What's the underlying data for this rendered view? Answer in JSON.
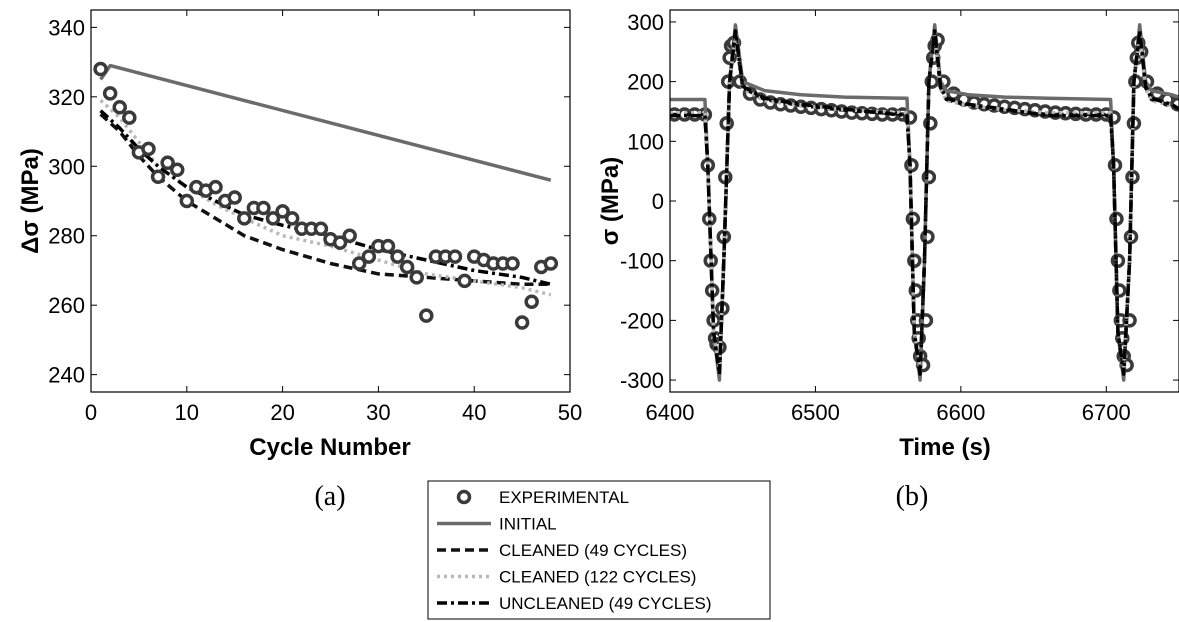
{
  "colors": {
    "experimental": "#3a3a3a",
    "initial": "#6b6b6b",
    "cleaned49": "#111111",
    "cleaned122": "#b8b8b8",
    "uncleaned49": "#000000"
  },
  "legend": {
    "placement": "bottom-center",
    "entries": [
      {
        "label": "EXPERIMENTAL",
        "style": "circle"
      },
      {
        "label": "INITIAL",
        "style": "solid"
      },
      {
        "label": "CLEANED (49 CYCLES)",
        "style": "dashed"
      },
      {
        "label": "CLEANED (122 CYCLES)",
        "style": "dotted"
      },
      {
        "label": "UNCLEANED (49 CYCLES)",
        "style": "dashdot"
      }
    ]
  },
  "chart_data": [
    {
      "type": "line",
      "panel_label": "(a)",
      "xlabel": "Cycle Number",
      "ylabel": "Δσ (MPa)",
      "xlim": [
        0,
        50
      ],
      "ylim": [
        235,
        345
      ],
      "xticks": [
        "0",
        "10",
        "20",
        "30",
        "40",
        "50"
      ],
      "yticks": [
        "240",
        "260",
        "280",
        "300",
        "320",
        "340"
      ],
      "grid": false,
      "series": [
        {
          "name": "EXPERIMENTAL",
          "style": "circle",
          "x": [
            1,
            2,
            3,
            4,
            5,
            6,
            7,
            8,
            9,
            10,
            11,
            12,
            13,
            14,
            15,
            16,
            17,
            18,
            19,
            20,
            21,
            22,
            23,
            24,
            25,
            26,
            27,
            28,
            29,
            30,
            31,
            32,
            33,
            34,
            35,
            36,
            37,
            38,
            39,
            40,
            41,
            42,
            43,
            44,
            45,
            46,
            47,
            48
          ],
          "y": [
            328,
            321,
            317,
            314,
            304,
            305,
            297,
            301,
            299,
            290,
            294,
            293,
            294,
            290,
            291,
            285,
            288,
            288,
            285,
            287,
            285,
            282,
            282,
            282,
            279,
            278,
            280,
            272,
            274,
            277,
            277,
            274,
            271,
            268,
            257,
            274,
            274,
            274,
            267,
            274,
            273,
            272,
            272,
            272,
            255,
            261,
            271,
            272
          ]
        },
        {
          "name": "INITIAL",
          "style": "solid",
          "x": [
            1,
            2,
            48
          ],
          "y": [
            325,
            329,
            296
          ]
        },
        {
          "name": "CLEANED (49 CYCLES)",
          "style": "dashed",
          "x": [
            1,
            3,
            5,
            7,
            10,
            13,
            16,
            20,
            25,
            30,
            35,
            40,
            45,
            48
          ],
          "y": [
            315,
            310,
            303,
            297,
            290,
            285,
            280,
            276,
            272,
            269,
            268,
            267,
            266,
            266
          ]
        },
        {
          "name": "CLEANED (122 CYCLES)",
          "style": "dotted",
          "x": [
            1,
            3,
            5,
            7,
            10,
            13,
            16,
            20,
            25,
            30,
            35,
            40,
            45,
            48
          ],
          "y": [
            319,
            314,
            307,
            300,
            294,
            289,
            285,
            280,
            277,
            273,
            269,
            267,
            265,
            263
          ]
        },
        {
          "name": "UNCLEANED (49 CYCLES)",
          "style": "dashdot",
          "x": [
            1,
            3,
            5,
            7,
            10,
            13,
            16,
            20,
            25,
            30,
            35,
            40,
            45,
            48
          ],
          "y": [
            316,
            311,
            305,
            300,
            294,
            290,
            286,
            283,
            280,
            276,
            273,
            270,
            268,
            266
          ]
        }
      ]
    },
    {
      "type": "line",
      "panel_label": "(b)",
      "xlabel": "Time (s)",
      "ylabel": "σ (MPa)",
      "xlim": [
        6400,
        6750
      ],
      "ylim": [
        -320,
        320
      ],
      "xticks": [
        "6400",
        "6500",
        "6600",
        "6700"
      ],
      "yticks": [
        "-300",
        "-200",
        "-100",
        "0",
        "100",
        "200",
        "300"
      ],
      "grid": false,
      "series": [
        {
          "name": "EXPERIMENTAL",
          "style": "circle",
          "x": [
            6403,
            6410,
            6417,
            6424,
            6426,
            6427,
            6428,
            6429,
            6430,
            6431,
            6432,
            6434,
            6436,
            6437,
            6438,
            6439,
            6440,
            6441,
            6442,
            6444,
            6448,
            6455,
            6462,
            6469,
            6476,
            6483,
            6490,
            6497,
            6504,
            6511,
            6518,
            6525,
            6532,
            6539,
            6546,
            6553,
            6560,
            6565,
            6566,
            6567,
            6568,
            6569,
            6570,
            6571,
            6572,
            6574,
            6576,
            6577,
            6578,
            6579,
            6580,
            6581,
            6582,
            6584,
            6588,
            6595,
            6602,
            6609,
            6616,
            6623,
            6630,
            6637,
            6644,
            6651,
            6658,
            6665,
            6672,
            6679,
            6686,
            6693,
            6700,
            6705,
            6706,
            6707,
            6708,
            6709,
            6710,
            6711,
            6712,
            6714,
            6716,
            6717,
            6718,
            6719,
            6720,
            6721,
            6722,
            6724,
            6728,
            6735,
            6742,
            6749
          ],
          "y": [
            145,
            145,
            145,
            145,
            60,
            -30,
            -100,
            -150,
            -200,
            -230,
            -240,
            -245,
            -180,
            -60,
            40,
            130,
            200,
            240,
            260,
            265,
            200,
            180,
            170,
            165,
            162,
            160,
            158,
            156,
            154,
            152,
            150,
            148,
            147,
            146,
            145,
            145,
            145,
            140,
            60,
            -30,
            -100,
            -150,
            -200,
            -230,
            -260,
            -275,
            -200,
            -60,
            40,
            130,
            200,
            240,
            260,
            270,
            200,
            180,
            170,
            165,
            162,
            160,
            158,
            156,
            154,
            152,
            150,
            148,
            147,
            146,
            145,
            145,
            145,
            140,
            60,
            -30,
            -100,
            -150,
            -200,
            -230,
            -260,
            -275,
            -200,
            -60,
            40,
            130,
            200,
            240,
            265,
            250,
            200,
            180,
            170,
            162
          ]
        },
        {
          "name": "INITIAL",
          "style": "solid",
          "x": [
            6400,
            6424,
            6426,
            6430,
            6434,
            6437,
            6441,
            6445,
            6450,
            6465,
            6490,
            6520,
            6563,
            6565,
            6568,
            6572,
            6575,
            6578,
            6582,
            6586,
            6590,
            6605,
            6630,
            6660,
            6703,
            6705,
            6708,
            6712,
            6716,
            6719,
            6723,
            6727,
            6731,
            6745,
            6750
          ],
          "y": [
            170,
            170,
            60,
            -220,
            -300,
            -100,
            200,
            295,
            200,
            185,
            178,
            174,
            172,
            60,
            -220,
            -300,
            -100,
            200,
            295,
            200,
            185,
            178,
            174,
            172,
            170,
            60,
            -220,
            -300,
            -100,
            200,
            295,
            200,
            185,
            178,
            174
          ]
        },
        {
          "name": "CLEANED (49 CYCLES)",
          "style": "dashed",
          "x": [
            6400,
            6424,
            6426,
            6430,
            6434,
            6437,
            6441,
            6445,
            6450,
            6465,
            6490,
            6520,
            6563,
            6565,
            6568,
            6572,
            6575,
            6578,
            6582,
            6586,
            6590,
            6605,
            6630,
            6660,
            6703,
            6705,
            6708,
            6712,
            6716,
            6719,
            6723,
            6727,
            6731,
            6745,
            6750
          ],
          "y": [
            145,
            145,
            60,
            -220,
            -285,
            -100,
            200,
            280,
            190,
            170,
            160,
            152,
            145,
            60,
            -220,
            -285,
            -100,
            200,
            280,
            190,
            170,
            160,
            152,
            145,
            145,
            60,
            -220,
            -285,
            -100,
            200,
            280,
            190,
            170,
            160,
            155
          ]
        },
        {
          "name": "CLEANED (122 CYCLES)",
          "style": "dotted",
          "x": [
            6400,
            6424,
            6426,
            6430,
            6434,
            6437,
            6441,
            6445,
            6450,
            6465,
            6490,
            6520,
            6563,
            6565,
            6568,
            6572,
            6575,
            6578,
            6582,
            6586,
            6590,
            6605,
            6630,
            6660,
            6703,
            6705,
            6708,
            6712,
            6716,
            6719,
            6723,
            6727,
            6731,
            6745,
            6750
          ],
          "y": [
            148,
            148,
            60,
            -220,
            -280,
            -100,
            200,
            275,
            188,
            168,
            160,
            153,
            148,
            60,
            -220,
            -280,
            -100,
            200,
            275,
            188,
            168,
            160,
            153,
            148,
            148,
            60,
            -220,
            -280,
            -100,
            200,
            275,
            188,
            168,
            160,
            156
          ]
        },
        {
          "name": "UNCLEANED (49 CYCLES)",
          "style": "dashdot",
          "x": [
            6400,
            6424,
            6426,
            6430,
            6434,
            6437,
            6441,
            6445,
            6450,
            6465,
            6490,
            6520,
            6563,
            6565,
            6568,
            6572,
            6575,
            6578,
            6582,
            6586,
            6590,
            6605,
            6630,
            6660,
            6703,
            6705,
            6708,
            6712,
            6716,
            6719,
            6723,
            6727,
            6731,
            6745,
            6750
          ],
          "y": [
            143,
            143,
            60,
            -220,
            -290,
            -100,
            200,
            285,
            192,
            172,
            162,
            154,
            143,
            60,
            -220,
            -290,
            -100,
            200,
            285,
            192,
            172,
            162,
            154,
            143,
            143,
            60,
            -220,
            -290,
            -100,
            200,
            285,
            192,
            172,
            162,
            154
          ]
        }
      ]
    }
  ]
}
